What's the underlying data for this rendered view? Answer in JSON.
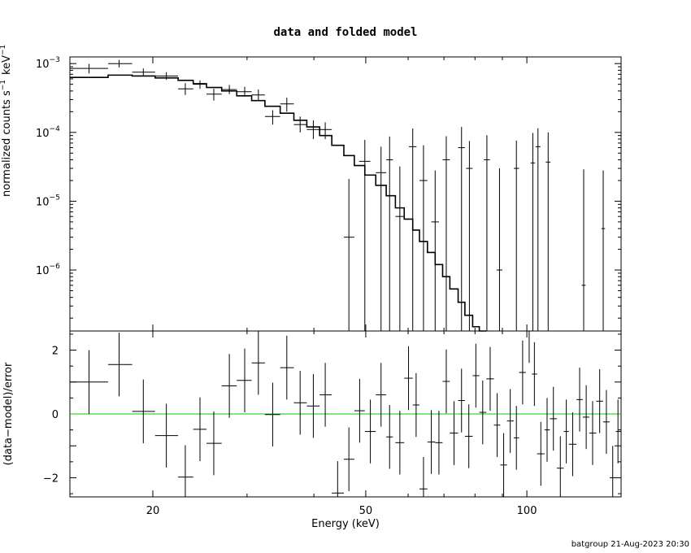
{
  "title": "data and folded model",
  "footer": "batgroup 21-Aug-2023 20:30",
  "colors": {
    "axes": "#000000",
    "zero_line": "#00cc00",
    "background": "#ffffff"
  },
  "chart_data": [
    {
      "type": "line",
      "panel": "top",
      "ylabel_text": "normalized counts s",
      "ylabel_unit": "keV",
      "ylabel_exp": "−1",
      "xscale": "log",
      "yscale": "log",
      "xlim": [
        14,
        150
      ],
      "ylim": [
        1.3e-07,
        0.00125
      ],
      "ytick_labels": [
        {
          "value": 0.001,
          "base": "10",
          "exp": "−3"
        },
        {
          "value": 0.0001,
          "base": "10",
          "exp": "−4"
        },
        {
          "value": 1e-05,
          "base": "10",
          "exp": "−5"
        },
        {
          "value": 1e-06,
          "base": "10",
          "exp": "−6"
        }
      ],
      "series": [
        {
          "role": "data",
          "points": [
            {
              "x": 15.2,
              "xl": 14.0,
              "xh": 16.5,
              "y": 0.00085,
              "yl": 0.00072,
              "yh": 0.00099
            },
            {
              "x": 17.3,
              "xl": 16.5,
              "xh": 18.3,
              "y": 0.001,
              "yl": 0.00088,
              "yh": 0.00113
            },
            {
              "x": 19.2,
              "xl": 18.3,
              "xh": 20.2,
              "y": 0.00075,
              "yl": 0.00066,
              "yh": 0.00085
            },
            {
              "x": 21.2,
              "xl": 20.2,
              "xh": 22.3,
              "y": 0.00066,
              "yl": 0.00058,
              "yh": 0.00075
            },
            {
              "x": 23.0,
              "xl": 22.3,
              "xh": 23.8,
              "y": 0.00043,
              "yl": 0.00035,
              "yh": 0.00052
            },
            {
              "x": 24.5,
              "xl": 23.8,
              "xh": 25.2,
              "y": 0.0005,
              "yl": 0.00043,
              "yh": 0.00057
            },
            {
              "x": 26.0,
              "xl": 25.2,
              "xh": 26.9,
              "y": 0.00036,
              "yl": 0.00029,
              "yh": 0.00043
            },
            {
              "x": 27.8,
              "xl": 26.9,
              "xh": 28.7,
              "y": 0.00042,
              "yl": 0.00036,
              "yh": 0.00049
            },
            {
              "x": 29.7,
              "xl": 28.7,
              "xh": 30.6,
              "y": 0.00039,
              "yl": 0.00033,
              "yh": 0.00046
            },
            {
              "x": 31.5,
              "xl": 30.6,
              "xh": 32.4,
              "y": 0.00035,
              "yl": 0.00029,
              "yh": 0.00042
            },
            {
              "x": 33.5,
              "xl": 32.4,
              "xh": 34.6,
              "y": 0.00017,
              "yl": 0.00013,
              "yh": 0.00021
            },
            {
              "x": 35.6,
              "xl": 34.6,
              "xh": 36.7,
              "y": 0.00026,
              "yl": 0.0002,
              "yh": 0.00032
            },
            {
              "x": 37.7,
              "xl": 36.7,
              "xh": 38.8,
              "y": 0.00013,
              "yl": 0.0001,
              "yh": 0.00017
            },
            {
              "x": 39.9,
              "xl": 38.8,
              "xh": 41.0,
              "y": 0.00011,
              "yl": 8e-05,
              "yh": 0.00015
            },
            {
              "x": 42.0,
              "xl": 41.0,
              "xh": 43.2,
              "y": 0.00011,
              "yl": 8e-05,
              "yh": 0.00014
            },
            {
              "x": 46.5,
              "xl": 45.5,
              "xh": 47.6,
              "y": 3e-06,
              "yl": 1.3e-07,
              "yh": 2.1e-05
            },
            {
              "x": 49.8,
              "xl": 48.6,
              "xh": 51.0,
              "y": 3.8e-05,
              "yl": 1.3e-07,
              "yh": 7.8e-05
            },
            {
              "x": 53.4,
              "xl": 52.2,
              "xh": 54.6,
              "y": 2.6e-05,
              "yl": 1.3e-07,
              "yh": 6.2e-05
            },
            {
              "x": 55.4,
              "xl": 54.6,
              "xh": 56.2,
              "y": 4e-05,
              "yl": 1.3e-07,
              "yh": 8.7e-05
            },
            {
              "x": 57.9,
              "xl": 56.8,
              "xh": 59.0,
              "y": 6e-06,
              "yl": 1.3e-07,
              "yh": 3.2e-05
            },
            {
              "x": 61.2,
              "xl": 60.2,
              "xh": 62.2,
              "y": 6.2e-05,
              "yl": 1.3e-07,
              "yh": 0.000114
            },
            {
              "x": 64.1,
              "xl": 63.0,
              "xh": 65.2,
              "y": 2e-05,
              "yl": 1.3e-07,
              "yh": 6.5e-05
            },
            {
              "x": 67.4,
              "xl": 66.3,
              "xh": 68.5,
              "y": 5e-06,
              "yl": 1.3e-07,
              "yh": 2.8e-05
            },
            {
              "x": 70.7,
              "xl": 69.6,
              "xh": 71.8,
              "y": 4e-05,
              "yl": 1.3e-07,
              "yh": 8.8e-05
            },
            {
              "x": 75.5,
              "xl": 74.4,
              "xh": 76.6,
              "y": 6e-05,
              "yl": 1.3e-07,
              "yh": 0.00012
            },
            {
              "x": 78.1,
              "xl": 77.0,
              "xh": 79.2,
              "y": 3e-05,
              "yl": 1.3e-07,
              "yh": 7.5e-05
            },
            {
              "x": 84.2,
              "xl": 83.1,
              "xh": 85.3,
              "y": 4e-05,
              "yl": 1.3e-07,
              "yh": 9.1e-05
            },
            {
              "x": 88.9,
              "xl": 87.8,
              "xh": 90.0,
              "y": 1e-06,
              "yl": 1.3e-07,
              "yh": 3e-05
            },
            {
              "x": 95.6,
              "xl": 94.5,
              "xh": 96.7,
              "y": 3e-05,
              "yl": 1.3e-07,
              "yh": 7.6e-05
            },
            {
              "x": 102.6,
              "xl": 101.6,
              "xh": 103.6,
              "y": 3.6e-05,
              "yl": 1.3e-07,
              "yh": 9.8e-05
            },
            {
              "x": 104.9,
              "xl": 103.8,
              "xh": 106.0,
              "y": 6.2e-05,
              "yl": 1.3e-07,
              "yh": 0.000115
            },
            {
              "x": 109.6,
              "xl": 108.5,
              "xh": 110.7,
              "y": 3.7e-05,
              "yl": 1.3e-07,
              "yh": 0.0001
            },
            {
              "x": 127.7,
              "xl": 126.6,
              "xh": 128.8,
              "y": 6e-07,
              "yl": 1.3e-07,
              "yh": 2.9e-05
            },
            {
              "x": 138.9,
              "xl": 137.8,
              "xh": 140.0,
              "y": 4e-06,
              "yl": 1.3e-07,
              "yh": 2.8e-05
            }
          ]
        },
        {
          "role": "model",
          "step_edges": [
            14.0,
            16.5,
            18.3,
            20.2,
            22.3,
            23.8,
            25.2,
            26.9,
            28.7,
            30.6,
            32.4,
            34.6,
            36.7,
            38.8,
            41.0,
            43.2,
            45.5,
            47.6,
            49.8,
            52.2,
            54.6,
            56.8,
            59.0,
            61.2,
            63.0,
            65.2,
            67.4,
            69.6,
            71.8,
            74.4,
            76.6,
            79.2,
            81.5,
            84.0
          ],
          "step_values": [
            0.00063,
            0.00068,
            0.00066,
            0.00062,
            0.00057,
            0.00051,
            0.00045,
            0.0004,
            0.00034,
            0.00029,
            0.00024,
            0.00019,
            0.00015,
            0.00012,
            9e-05,
            6.5e-05,
            4.6e-05,
            3.3e-05,
            2.4e-05,
            1.7e-05,
            1.2e-05,
            8e-06,
            5.5e-06,
            3.8e-06,
            2.6e-06,
            1.8e-06,
            1.2e-06,
            8e-07,
            5.3e-07,
            3.4e-07,
            2.2e-07,
            1.5e-07,
            1.3e-07
          ]
        }
      ]
    },
    {
      "type": "scatter",
      "panel": "bottom",
      "ylabel": "(data−model)/error",
      "xlabel": "Energy (keV)",
      "xscale": "log",
      "xlim": [
        14,
        150
      ],
      "ylim": [
        -2.6,
        2.6
      ],
      "xtick_labels": [
        20,
        50,
        100
      ],
      "ytick_labels": [
        2,
        0,
        -2
      ],
      "zero_line": 0,
      "points": [
        {
          "x": 15.2,
          "xl": 14.0,
          "xh": 16.5,
          "y": 1.0,
          "yl": 0.0,
          "yh": 2.0
        },
        {
          "x": 17.3,
          "xl": 16.5,
          "xh": 18.3,
          "y": 1.55,
          "yl": 0.55,
          "yh": 2.55
        },
        {
          "x": 19.2,
          "xl": 18.3,
          "xh": 20.2,
          "y": 0.08,
          "yl": -0.92,
          "yh": 1.08
        },
        {
          "x": 21.2,
          "xl": 20.2,
          "xh": 22.3,
          "y": -0.68,
          "yl": -1.68,
          "yh": 0.32
        },
        {
          "x": 23.0,
          "xl": 22.3,
          "xh": 23.8,
          "y": -1.98,
          "yl": -2.6,
          "yh": -0.98
        },
        {
          "x": 24.5,
          "xl": 23.8,
          "xh": 25.2,
          "y": -0.48,
          "yl": -1.48,
          "yh": 0.52
        },
        {
          "x": 26.0,
          "xl": 25.2,
          "xh": 26.9,
          "y": -0.92,
          "yl": -1.92,
          "yh": 0.08
        },
        {
          "x": 27.8,
          "xl": 26.9,
          "xh": 28.7,
          "y": 0.88,
          "yl": -0.12,
          "yh": 1.88
        },
        {
          "x": 29.7,
          "xl": 28.7,
          "xh": 30.6,
          "y": 1.05,
          "yl": 0.05,
          "yh": 2.05
        },
        {
          "x": 31.5,
          "xl": 30.6,
          "xh": 32.4,
          "y": 1.6,
          "yl": 0.6,
          "yh": 2.6
        },
        {
          "x": 33.5,
          "xl": 32.4,
          "xh": 34.6,
          "y": -0.02,
          "yl": -1.02,
          "yh": 0.98
        },
        {
          "x": 35.6,
          "xl": 34.6,
          "xh": 36.7,
          "y": 1.45,
          "yl": 0.45,
          "yh": 2.45
        },
        {
          "x": 37.7,
          "xl": 36.7,
          "xh": 38.8,
          "y": 0.35,
          "yl": -0.65,
          "yh": 1.35
        },
        {
          "x": 39.9,
          "xl": 38.8,
          "xh": 41.0,
          "y": 0.25,
          "yl": -0.75,
          "yh": 1.25
        },
        {
          "x": 42.0,
          "xl": 41.0,
          "xh": 43.2,
          "y": 0.6,
          "yl": -0.4,
          "yh": 1.6
        },
        {
          "x": 44.3,
          "xl": 43.2,
          "xh": 45.5,
          "y": -2.48,
          "yl": -2.6,
          "yh": -1.48
        },
        {
          "x": 46.5,
          "xl": 45.5,
          "xh": 47.6,
          "y": -1.42,
          "yl": -2.42,
          "yh": -0.42
        },
        {
          "x": 48.7,
          "xl": 47.6,
          "xh": 49.8,
          "y": 0.1,
          "yl": -0.9,
          "yh": 1.1
        },
        {
          "x": 51.0,
          "xl": 49.8,
          "xh": 52.2,
          "y": -0.55,
          "yl": -1.55,
          "yh": 0.45
        },
        {
          "x": 53.4,
          "xl": 52.2,
          "xh": 54.6,
          "y": 0.6,
          "yl": -0.4,
          "yh": 1.6
        },
        {
          "x": 55.4,
          "xl": 54.6,
          "xh": 56.2,
          "y": -0.72,
          "yl": -1.72,
          "yh": 0.28
        },
        {
          "x": 57.9,
          "xl": 56.8,
          "xh": 59.0,
          "y": -0.9,
          "yl": -1.9,
          "yh": 0.1
        },
        {
          "x": 60.1,
          "xl": 59.0,
          "xh": 61.2,
          "y": 1.12,
          "yl": 0.12,
          "yh": 2.12
        },
        {
          "x": 62.1,
          "xl": 61.2,
          "xh": 63.0,
          "y": 0.28,
          "yl": -0.72,
          "yh": 1.28
        },
        {
          "x": 64.1,
          "xl": 63.0,
          "xh": 65.2,
          "y": -2.35,
          "yl": -2.6,
          "yh": -1.35
        },
        {
          "x": 66.3,
          "xl": 65.2,
          "xh": 67.4,
          "y": -0.88,
          "yl": -1.88,
          "yh": 0.12
        },
        {
          "x": 68.5,
          "xl": 67.4,
          "xh": 69.6,
          "y": -0.9,
          "yl": -1.9,
          "yh": 0.1
        },
        {
          "x": 70.7,
          "xl": 69.6,
          "xh": 71.8,
          "y": 1.02,
          "yl": 0.02,
          "yh": 2.02
        },
        {
          "x": 73.1,
          "xl": 71.8,
          "xh": 74.4,
          "y": -0.6,
          "yl": -1.6,
          "yh": 0.4
        },
        {
          "x": 75.5,
          "xl": 74.4,
          "xh": 76.6,
          "y": 0.42,
          "yl": -0.58,
          "yh": 1.42
        },
        {
          "x": 77.9,
          "xl": 76.6,
          "xh": 79.2,
          "y": -0.7,
          "yl": -1.7,
          "yh": 0.3
        },
        {
          "x": 80.3,
          "xl": 79.2,
          "xh": 81.5,
          "y": 1.2,
          "yl": 0.2,
          "yh": 2.2
        },
        {
          "x": 82.7,
          "xl": 81.5,
          "xh": 84.0,
          "y": 0.05,
          "yl": -0.95,
          "yh": 1.05
        },
        {
          "x": 85.4,
          "xl": 84.0,
          "xh": 86.8,
          "y": 1.1,
          "yl": 0.1,
          "yh": 2.1
        },
        {
          "x": 88.0,
          "xl": 86.8,
          "xh": 89.2,
          "y": -0.35,
          "yl": -1.35,
          "yh": 0.65
        },
        {
          "x": 90.5,
          "xl": 89.2,
          "xh": 91.8,
          "y": -1.6,
          "yl": -2.6,
          "yh": -0.6
        },
        {
          "x": 93.1,
          "xl": 91.8,
          "xh": 94.5,
          "y": -0.22,
          "yl": -1.22,
          "yh": 0.78
        },
        {
          "x": 95.6,
          "xl": 94.5,
          "xh": 96.7,
          "y": -0.75,
          "yl": -1.75,
          "yh": 0.25
        },
        {
          "x": 98.2,
          "xl": 96.7,
          "xh": 99.6,
          "y": 1.3,
          "yl": 0.3,
          "yh": 2.3
        },
        {
          "x": 101.0,
          "xl": 99.6,
          "xh": 102.2,
          "y": 2.6,
          "yl": 1.6,
          "yh": 2.6
        },
        {
          "x": 103.3,
          "xl": 102.2,
          "xh": 104.5,
          "y": 1.25,
          "yl": 0.25,
          "yh": 2.25
        },
        {
          "x": 106.2,
          "xl": 104.5,
          "xh": 107.9,
          "y": -1.25,
          "yl": -2.25,
          "yh": -0.25
        },
        {
          "x": 109.1,
          "xl": 107.9,
          "xh": 110.4,
          "y": -0.5,
          "yl": -1.5,
          "yh": 0.5
        },
        {
          "x": 112.1,
          "xl": 110.4,
          "xh": 113.8,
          "y": -0.15,
          "yl": -1.15,
          "yh": 0.85
        },
        {
          "x": 115.5,
          "xl": 113.8,
          "xh": 117.2,
          "y": -1.7,
          "yl": -2.6,
          "yh": -0.7
        },
        {
          "x": 118.5,
          "xl": 117.2,
          "xh": 119.8,
          "y": -0.55,
          "yl": -1.55,
          "yh": 0.45
        },
        {
          "x": 121.8,
          "xl": 119.8,
          "xh": 123.8,
          "y": -0.95,
          "yl": -1.95,
          "yh": 0.05
        },
        {
          "x": 125.5,
          "xl": 123.8,
          "xh": 127.2,
          "y": 0.45,
          "yl": -0.55,
          "yh": 1.45
        },
        {
          "x": 129.1,
          "xl": 127.2,
          "xh": 130.8,
          "y": -0.1,
          "yl": -1.1,
          "yh": 0.9
        },
        {
          "x": 132.7,
          "xl": 130.8,
          "xh": 134.8,
          "y": -0.6,
          "yl": -1.6,
          "yh": 0.4
        },
        {
          "x": 136.8,
          "xl": 134.8,
          "xh": 138.8,
          "y": 0.4,
          "yl": -0.6,
          "yh": 1.4
        },
        {
          "x": 140.8,
          "xl": 138.8,
          "xh": 142.8,
          "y": -0.25,
          "yl": -1.25,
          "yh": 0.75
        },
        {
          "x": 144.7,
          "xl": 142.8,
          "xh": 146.6,
          "y": -2.0,
          "yl": -2.6,
          "yh": -1.0
        },
        {
          "x": 148.0,
          "xl": 146.6,
          "xh": 150.0,
          "y": -0.55,
          "yl": -1.55,
          "yh": 0.45
        }
      ]
    }
  ]
}
